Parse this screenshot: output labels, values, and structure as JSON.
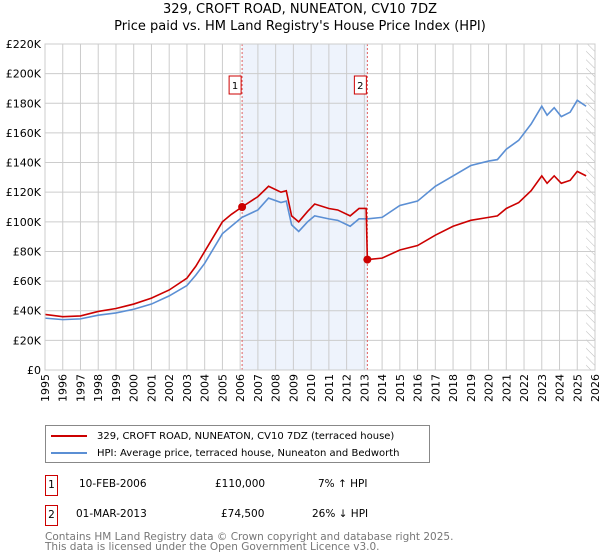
{
  "colors": {
    "property": "#cc0000",
    "hpi": "#5b8fd4",
    "shade": "#eef3fc"
  },
  "chart_data": {
    "type": "line",
    "title": "329, CROFT ROAD, NUNEATON, CV10 7DZ",
    "subtitle": "Price paid vs. HM Land Registry's House Price Index (HPI)",
    "xlim": [
      1995,
      2026
    ],
    "ylim": [
      0,
      220000
    ],
    "y_ticks": [
      "£0",
      "£20K",
      "£40K",
      "£60K",
      "£80K",
      "£100K",
      "£120K",
      "£140K",
      "£160K",
      "£180K",
      "£200K",
      "£220K"
    ],
    "x_ticks": [
      "1995",
      "1996",
      "1997",
      "1998",
      "1999",
      "2000",
      "2001",
      "2002",
      "2003",
      "2004",
      "2005",
      "2006",
      "2007",
      "2008",
      "2009",
      "2010",
      "2011",
      "2012",
      "2013",
      "2014",
      "2015",
      "2016",
      "2017",
      "2018",
      "2019",
      "2020",
      "2021",
      "2022",
      "2023",
      "2024",
      "2025",
      "2026"
    ],
    "grid": true,
    "series": [
      {
        "name": "329, CROFT ROAD, NUNEATON, CV10 7DZ (terraced house)",
        "color": "#cc0000",
        "x": [
          1995,
          1996,
          1997,
          1998,
          1999,
          2000,
          2001,
          2002,
          2003,
          2003.5,
          2004,
          2005,
          2005.5,
          2006.1,
          2007,
          2007.6,
          2008.3,
          2008.6,
          2008.9,
          2009.3,
          2009.8,
          2010.2,
          2011,
          2011.5,
          2012.2,
          2012.7,
          2013.1,
          2013.17,
          2014,
          2015,
          2016,
          2017,
          2018,
          2019,
          2020,
          2020.5,
          2021,
          2021.7,
          2022.4,
          2023,
          2023.3,
          2023.7,
          2024.1,
          2024.6,
          2025,
          2025.5
        ],
        "y": [
          37500,
          36000,
          36500,
          39500,
          41500,
          44500,
          48500,
          54000,
          62000,
          70000,
          80000,
          100000,
          105000,
          110000,
          117000,
          124000,
          120000,
          121000,
          104000,
          100000,
          107000,
          112000,
          109000,
          108000,
          104000,
          109000,
          109000,
          74500,
          75500,
          81000,
          84000,
          91000,
          97000,
          101000,
          103000,
          104000,
          109000,
          113000,
          121000,
          131000,
          126000,
          131000,
          126000,
          128000,
          134000,
          131000
        ]
      },
      {
        "name": "HPI: Average price, terraced house, Nuneaton and Bedworth",
        "color": "#5b8fd4",
        "x": [
          1995,
          1996,
          1997,
          1998,
          1999,
          2000,
          2001,
          2002,
          2003,
          2003.5,
          2004,
          2005,
          2005.5,
          2006.1,
          2007,
          2007.6,
          2008.3,
          2008.6,
          2008.9,
          2009.3,
          2009.8,
          2010.2,
          2011,
          2011.5,
          2012.2,
          2012.7,
          2013.2,
          2014,
          2015,
          2016,
          2017,
          2018,
          2019,
          2020,
          2020.5,
          2021,
          2021.7,
          2022.4,
          2023,
          2023.3,
          2023.7,
          2024.1,
          2024.6,
          2025,
          2025.5
        ],
        "y": [
          35000,
          34000,
          34500,
          37000,
          38500,
          41000,
          44500,
          50000,
          57000,
          64000,
          72000,
          92000,
          97000,
          103000,
          108000,
          116000,
          113000,
          114000,
          98000,
          93500,
          100000,
          104000,
          102000,
          101000,
          97000,
          102000,
          102000,
          103000,
          111000,
          114000,
          124000,
          131000,
          138000,
          141000,
          142000,
          149000,
          155000,
          166000,
          178000,
          172000,
          177000,
          171000,
          174000,
          182000,
          178000
        ]
      }
    ],
    "annotations": [
      {
        "label": "1",
        "x": 2006.11,
        "y": 110000
      },
      {
        "label": "2",
        "x": 2013.17,
        "y": 74500
      }
    ],
    "shaded_range": [
      2006.11,
      2013.17
    ],
    "hatched_from": 2025.5
  },
  "legend": {
    "items": [
      "329, CROFT ROAD, NUNEATON, CV10 7DZ (terraced house)",
      "HPI: Average price, terraced house, Nuneaton and Bedworth"
    ]
  },
  "transactions": [
    {
      "num": "1",
      "date": "10-FEB-2006",
      "price": "£110,000",
      "hpi": "7% ↑ HPI"
    },
    {
      "num": "2",
      "date": "01-MAR-2013",
      "price": "£74,500",
      "hpi": "26% ↓ HPI"
    }
  ],
  "footer": [
    "Contains HM Land Registry data © Crown copyright and database right 2025.",
    "This data is licensed under the Open Government Licence v3.0."
  ]
}
